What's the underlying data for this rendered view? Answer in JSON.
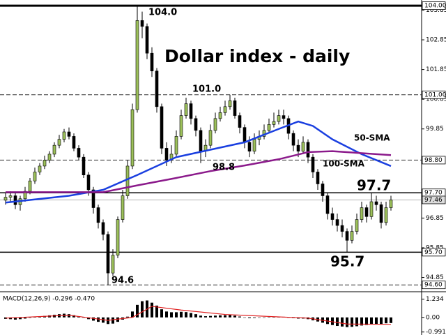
{
  "chart_data": {
    "type": "candlestick",
    "title": "Dollar index - daily",
    "up_color": "#9cc05a",
    "down_color": "#000000",
    "candles": {
      "open": [
        97.45,
        97.55,
        97.6,
        97.3,
        97.5,
        97.75,
        98.1,
        98.4,
        98.6,
        98.8,
        99.0,
        99.3,
        99.5,
        99.75,
        99.6,
        99.2,
        98.9,
        98.3,
        97.8,
        97.2,
        96.7,
        96.3,
        95.0,
        95.6,
        96.8,
        97.6,
        98.6,
        100.5,
        103.5,
        103.3,
        102.4,
        101.8,
        100.6,
        99.2,
        98.8,
        99.0,
        99.6,
        100.3,
        100.7,
        100.2,
        99.8,
        99.1,
        99.3,
        99.8,
        100.2,
        100.4,
        100.6,
        100.8,
        100.3,
        99.9,
        99.4,
        99.1,
        99.5,
        99.6,
        99.8,
        100.0,
        100.1,
        100.3,
        100.2,
        99.7,
        99.3,
        99.1,
        99.4,
        98.9,
        98.4,
        98.0,
        97.6,
        97.0,
        96.8,
        96.6,
        96.4,
        96.1,
        96.4,
        96.8,
        97.2,
        96.9,
        97.4,
        97.3,
        96.7,
        97.2
      ],
      "high": [
        97.7,
        97.75,
        97.7,
        97.6,
        97.9,
        98.2,
        98.55,
        98.7,
        98.95,
        99.1,
        99.4,
        99.65,
        99.85,
        99.9,
        99.7,
        99.3,
        99.0,
        98.4,
        97.9,
        97.3,
        96.8,
        96.4,
        95.8,
        96.9,
        97.8,
        98.8,
        100.7,
        104.0,
        103.8,
        103.4,
        102.6,
        101.9,
        100.7,
        99.4,
        99.3,
        99.8,
        100.5,
        100.9,
        100.8,
        100.3,
        99.9,
        99.5,
        100.0,
        100.4,
        100.6,
        100.8,
        101.0,
        100.9,
        100.4,
        100.0,
        99.6,
        99.7,
        99.8,
        100.0,
        100.2,
        100.4,
        100.5,
        100.5,
        100.3,
        99.8,
        99.5,
        99.6,
        99.5,
        99.0,
        98.5,
        98.1,
        97.7,
        97.2,
        97.0,
        96.8,
        96.5,
        96.6,
        97.0,
        97.4,
        97.3,
        97.7,
        97.6,
        97.4,
        97.4,
        97.6
      ],
      "low": [
        97.3,
        97.4,
        97.15,
        97.1,
        97.4,
        97.65,
        98.0,
        98.3,
        98.5,
        98.7,
        98.9,
        99.2,
        99.4,
        99.5,
        99.1,
        98.8,
        98.2,
        97.6,
        97.0,
        96.5,
        96.1,
        94.6,
        94.9,
        95.5,
        96.7,
        97.5,
        98.5,
        100.4,
        102.9,
        102.2,
        101.6,
        100.4,
        99.0,
        98.6,
        98.7,
        98.9,
        99.5,
        100.2,
        100.0,
        99.6,
        98.7,
        98.9,
        99.2,
        99.7,
        100.1,
        100.3,
        100.5,
        100.2,
        99.7,
        99.2,
        98.9,
        99.0,
        99.3,
        99.5,
        99.7,
        99.9,
        100.0,
        100.0,
        99.5,
        99.1,
        98.9,
        99.0,
        98.7,
        98.2,
        97.8,
        97.4,
        96.8,
        96.6,
        96.4,
        96.2,
        95.7,
        96.0,
        96.3,
        96.7,
        96.7,
        96.8,
        97.1,
        96.5,
        96.6,
        97.1
      ],
      "close": [
        97.55,
        97.6,
        97.3,
        97.5,
        97.75,
        98.1,
        98.4,
        98.6,
        98.8,
        99.0,
        99.3,
        99.5,
        99.75,
        99.6,
        99.2,
        98.9,
        98.3,
        97.8,
        97.2,
        96.7,
        96.3,
        95.0,
        95.6,
        96.8,
        97.6,
        98.6,
        100.5,
        103.5,
        103.3,
        102.4,
        101.8,
        100.6,
        99.2,
        98.8,
        99.0,
        99.6,
        100.3,
        100.7,
        100.2,
        99.8,
        99.1,
        99.3,
        99.8,
        100.2,
        100.4,
        100.6,
        100.8,
        100.3,
        99.9,
        99.4,
        99.1,
        99.5,
        99.6,
        99.8,
        100.0,
        100.1,
        100.3,
        100.2,
        99.7,
        99.3,
        99.1,
        99.4,
        98.9,
        98.4,
        98.0,
        97.6,
        97.0,
        96.8,
        96.6,
        96.4,
        96.1,
        96.4,
        96.8,
        97.2,
        96.9,
        97.4,
        97.3,
        96.7,
        97.2,
        97.46
      ]
    },
    "overlays": [
      {
        "name": "50-SMA",
        "color": "#1a3fe0",
        "x": [
          0,
          13,
          20,
          27,
          35,
          42,
          49,
          56,
          60,
          63,
          67,
          73,
          79
        ],
        "values": [
          97.37,
          97.6,
          97.8,
          98.3,
          98.9,
          99.15,
          99.4,
          99.85,
          100.1,
          99.95,
          99.5,
          99.0,
          98.6
        ]
      },
      {
        "name": "100-SMA",
        "color": "#8b1a8b",
        "x": [
          0,
          20,
          27,
          35,
          42,
          49,
          56,
          62,
          67,
          79
        ],
        "values": [
          97.72,
          97.72,
          97.95,
          98.2,
          98.43,
          98.62,
          98.83,
          99.07,
          99.1,
          98.97
        ]
      }
    ],
    "ylim": [
      94.44,
      104.12
    ],
    "yticks": [
      103.85,
      102.85,
      101.85,
      100.85,
      99.85,
      96.85,
      95.85,
      94.85
    ],
    "hlines": [
      {
        "value": 104,
        "label": "104.00",
        "style": "solid"
      },
      {
        "value": 101,
        "label": "101.00",
        "style": "dashed"
      },
      {
        "value": 98.8,
        "label": "98.80",
        "style": "dashed"
      },
      {
        "value": 97.7,
        "label": "97.70",
        "style": "solid"
      },
      {
        "value": 97.46,
        "label": "97.46",
        "style": "current"
      },
      {
        "value": 95.7,
        "label": "95.70",
        "style": "solid"
      },
      {
        "value": 94.6,
        "label": "94.60",
        "style": "dashed"
      }
    ],
    "annotations": [
      "104.0",
      "101.0",
      "98.8",
      "94.6",
      "97.7",
      "95.7"
    ],
    "macd": {
      "type": "bar",
      "label": "MACD(12,26,9) -0.296 -0.470",
      "ylim": [
        -1.1,
        1.6
      ],
      "yticks": [
        1.234,
        {
          "value": 0,
          "label": "0.00"
        },
        -0.991
      ],
      "histogram": {
        "color": "#000000",
        "values": [
          -0.1,
          -0.12,
          -0.15,
          -0.12,
          -0.08,
          -0.03,
          0.02,
          0.06,
          0.1,
          0.14,
          0.18,
          0.22,
          0.25,
          0.22,
          0.15,
          0.08,
          -0.02,
          -0.12,
          -0.22,
          -0.3,
          -0.36,
          -0.45,
          -0.42,
          -0.3,
          -0.15,
          0.05,
          0.4,
          0.85,
          1.1,
          1.15,
          1.0,
          0.8,
          0.55,
          0.4,
          0.35,
          0.35,
          0.38,
          0.36,
          0.3,
          0.22,
          0.12,
          0.08,
          0.1,
          0.12,
          0.14,
          0.15,
          0.16,
          0.12,
          0.06,
          0.0,
          -0.05,
          -0.04,
          -0.02,
          0.0,
          0.02,
          0.04,
          0.05,
          0.04,
          0.0,
          -0.05,
          -0.08,
          -0.08,
          -0.12,
          -0.2,
          -0.28,
          -0.36,
          -0.45,
          -0.52,
          -0.58,
          -0.62,
          -0.66,
          -0.64,
          -0.6,
          -0.55,
          -0.52,
          -0.48,
          -0.45,
          -0.44,
          -0.4,
          -0.38
        ]
      },
      "signal": {
        "color": "#e02020",
        "x": [
          0,
          13,
          21,
          26,
          30,
          36,
          45,
          55,
          62,
          70,
          79
        ],
        "values": [
          -0.05,
          0.15,
          -0.2,
          0.0,
          0.75,
          0.5,
          0.2,
          0.05,
          -0.05,
          -0.45,
          -0.47
        ]
      }
    }
  }
}
